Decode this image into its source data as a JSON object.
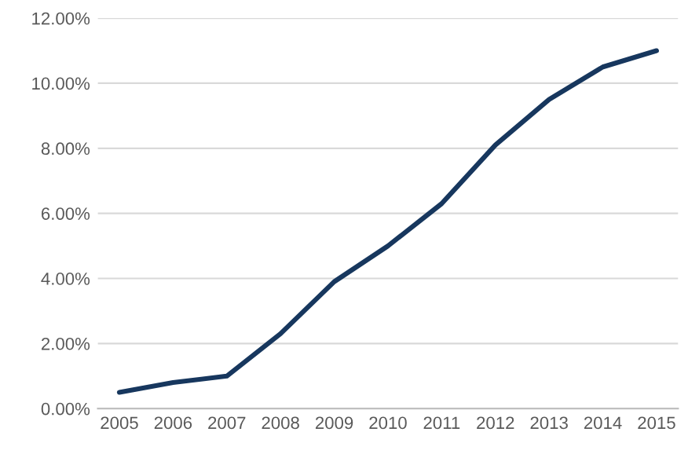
{
  "chart_data": {
    "type": "line",
    "categories": [
      "2005",
      "2006",
      "2007",
      "2008",
      "2009",
      "2010",
      "2011",
      "2012",
      "2013",
      "2014",
      "2015"
    ],
    "series": [
      {
        "color": "#17375e",
        "values": [
          0.5,
          0.8,
          1.0,
          2.3,
          3.9,
          5.0,
          6.3,
          8.1,
          9.5,
          10.5,
          11.0
        ]
      }
    ],
    "ylim": [
      0,
      12
    ],
    "yticks": [
      {
        "value": 0,
        "label": "0.00%"
      },
      {
        "value": 2,
        "label": "2.00%"
      },
      {
        "value": 4,
        "label": "4.00%"
      },
      {
        "value": 6,
        "label": "6.00%"
      },
      {
        "value": 8,
        "label": "8.00%"
      },
      {
        "value": 10,
        "label": "10.00%"
      },
      {
        "value": 12,
        "label": "12.00%"
      }
    ],
    "grid": "y",
    "legend": false,
    "marker": "none",
    "line_style": "solid"
  }
}
